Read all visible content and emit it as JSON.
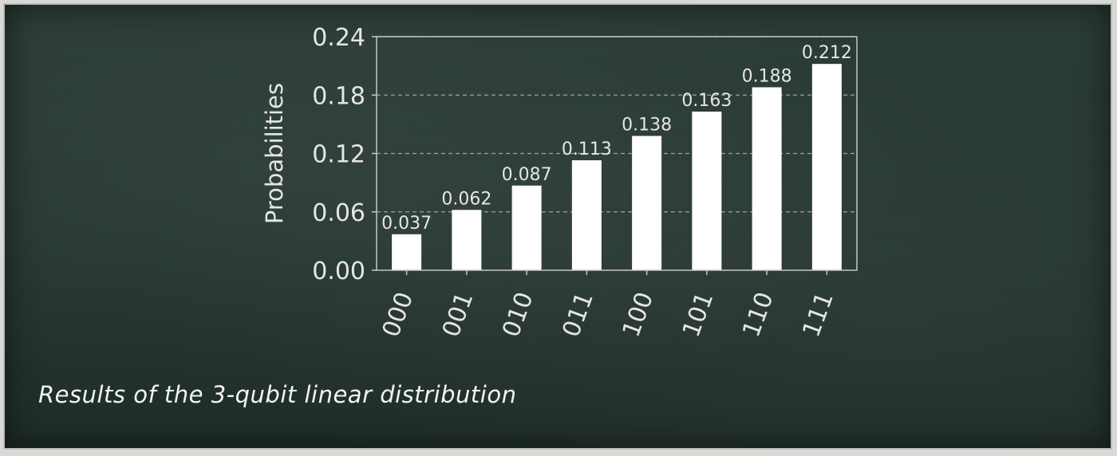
{
  "caption": "Results of the 3-qubit linear distribution",
  "chart_data": {
    "type": "bar",
    "title": "",
    "xlabel": "",
    "ylabel": "Probabilities",
    "categories": [
      "000",
      "001",
      "010",
      "011",
      "100",
      "101",
      "110",
      "111"
    ],
    "values": [
      0.037,
      0.062,
      0.087,
      0.113,
      0.138,
      0.163,
      0.188,
      0.212
    ],
    "data_labels": [
      "0.037",
      "0.062",
      "0.087",
      "0.113",
      "0.138",
      "0.163",
      "0.188",
      "0.212"
    ],
    "yticks": [
      "0.00",
      "0.06",
      "0.12",
      "0.18",
      "0.24"
    ],
    "ylim": [
      0,
      0.24
    ],
    "grid": "horizontal dashed",
    "colors": {
      "bar": "#ffffff",
      "text": "#e6e6e0",
      "axis": "#c8c8c0",
      "grid": "#9aa39f",
      "background": "#27372f"
    }
  }
}
